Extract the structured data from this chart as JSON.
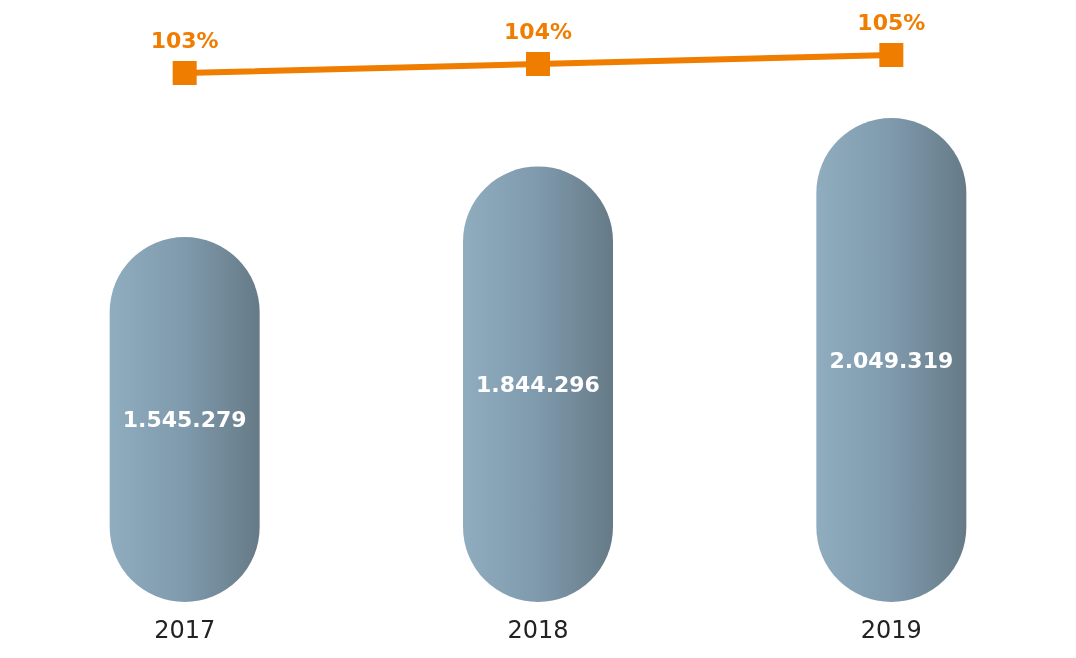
{
  "chart_data": [
    {
      "type": "line",
      "categories": [
        "2017",
        "2018",
        "2019"
      ],
      "series": [
        {
          "color": "#ef7d00",
          "values": [
            103,
            104,
            105
          ],
          "value_labels": [
            "103%",
            "104%",
            "105%"
          ]
        }
      ],
      "marker": "square",
      "line_style": "solid",
      "grid": false,
      "tick_labels": false
    },
    {
      "type": "bar",
      "categories": [
        "2017",
        "2018",
        "2019"
      ],
      "series": [
        {
          "color": "#7f9aad",
          "values": [
            1545279,
            1844296,
            2049319
          ],
          "value_labels": [
            "1.545.279",
            "1.844.296",
            "2.049.319"
          ]
        }
      ],
      "grid": false,
      "tick_labels": "x"
    }
  ]
}
